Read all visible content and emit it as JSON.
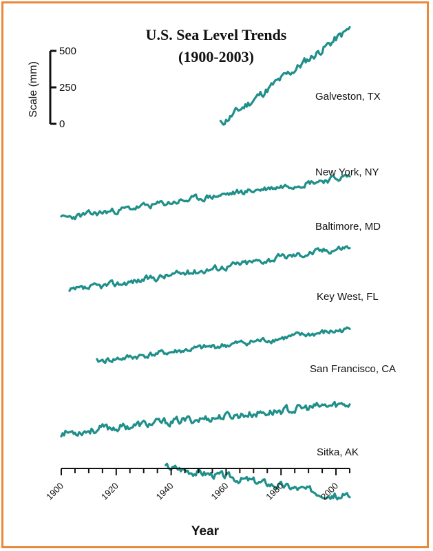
{
  "chart_data": {
    "type": "line",
    "title_lines": [
      "U.S. Sea Level Trends",
      "(1900-2003)"
    ],
    "xlabel": "Year",
    "x_ticks": [
      "1900",
      "1920",
      "1940",
      "1960",
      "1980",
      "2000"
    ],
    "xlim": [
      1900,
      2005
    ],
    "scale_bar": {
      "title": "Scale (mm)",
      "labels": [
        "500",
        "250",
        "0"
      ],
      "values": [
        500,
        250,
        0
      ]
    },
    "series_color": "#1f8f8a",
    "series": [
      {
        "name": "Galveston, TX",
        "start": 1958,
        "end": 2005,
        "trend_mm": 650,
        "noise": 55,
        "seed": 11,
        "offset_mm": 0
      },
      {
        "name": "New York, NY",
        "start": 1900,
        "end": 2005,
        "trend_mm": 290,
        "noise": 40,
        "seed": 23,
        "offset_mm": -650
      },
      {
        "name": "Baltimore, MD",
        "start": 1903,
        "end": 2005,
        "trend_mm": 310,
        "noise": 42,
        "seed": 37,
        "offset_mm": -1150
      },
      {
        "name": "Key West, FL",
        "start": 1913,
        "end": 2005,
        "trend_mm": 220,
        "noise": 38,
        "seed": 41,
        "offset_mm": -1630
      },
      {
        "name": "San Francisco, CA",
        "start": 1900,
        "end": 2005,
        "trend_mm": 200,
        "noise": 52,
        "seed": 53,
        "offset_mm": -2120
      },
      {
        "name": "Sitka, AK",
        "start": 1938,
        "end": 2005,
        "trend_mm": -210,
        "noise": 48,
        "seed": 67,
        "offset_mm": -2350
      }
    ]
  }
}
